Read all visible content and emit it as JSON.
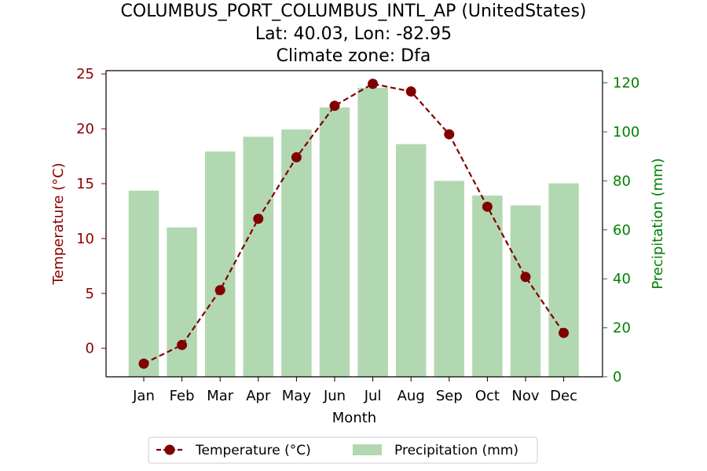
{
  "chart_data": {
    "type": "bar-line-combo",
    "title_lines": [
      "COLUMBUS_PORT_COLUMBUS_INTL_AP (UnitedStates)",
      "Lat: 40.03, Lon: -82.95",
      "Climate zone: Dfa"
    ],
    "xlabel": "Month",
    "ylabel_left": "Temperature (°C)",
    "ylabel_right": "Precipitation (mm)",
    "categories": [
      "Jan",
      "Feb",
      "Mar",
      "Apr",
      "May",
      "Jun",
      "Jul",
      "Aug",
      "Sep",
      "Oct",
      "Nov",
      "Dec"
    ],
    "temperature": {
      "name": "Temperature (°C)",
      "values": [
        -1.4,
        0.3,
        5.3,
        11.8,
        17.4,
        22.1,
        24.1,
        23.4,
        19.5,
        12.9,
        6.5,
        1.4
      ]
    },
    "precipitation": {
      "name": "Precipitation (mm)",
      "values": [
        76,
        61,
        92,
        98,
        101,
        110,
        118,
        95,
        80,
        74,
        70,
        79
      ]
    },
    "ylim_left": [
      -2.6,
      25.3
    ],
    "ylim_right": [
      0,
      125
    ],
    "yticks_left": [
      "0",
      "5",
      "10",
      "15",
      "20",
      "25"
    ],
    "yticks_right": [
      "0",
      "20",
      "40",
      "60",
      "80",
      "100",
      "120"
    ],
    "legend_placement": "bottom-center",
    "colors": {
      "temperature": "#800000",
      "precipitation_bar": "#b2d8b2",
      "left_axis_text": "#8b0000",
      "right_axis_text": "#008000"
    }
  }
}
